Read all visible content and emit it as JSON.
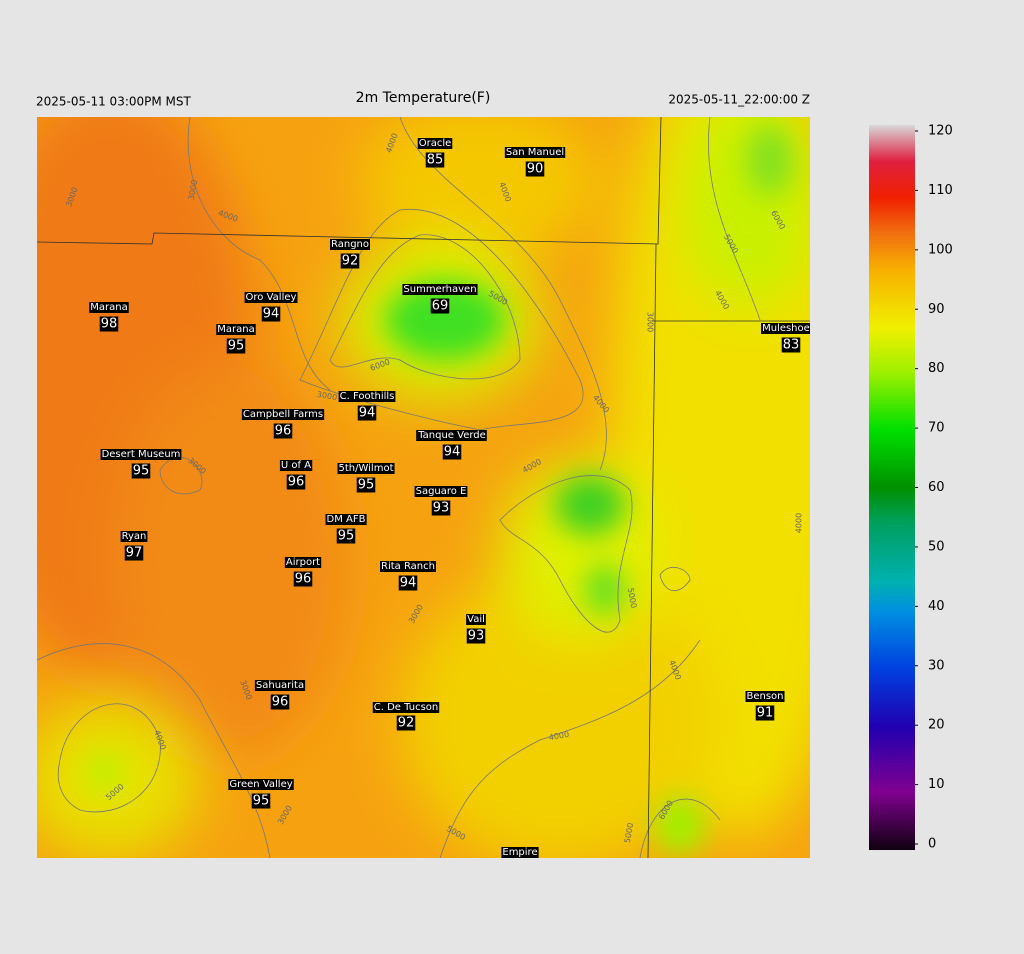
{
  "header": {
    "left": "2025-05-11 03:00PM MST",
    "title": "2m Temperature(F)",
    "right": "2025-05-11_22:00:00 Z"
  },
  "stations": [
    {
      "name": "Oracle",
      "temp": 85
    },
    {
      "name": "San Manuel",
      "temp": 90
    },
    {
      "name": "Rangno",
      "temp": 92
    },
    {
      "name": "Summerhaven",
      "temp": 69
    },
    {
      "name": "Marana",
      "temp": 98
    },
    {
      "name": "Oro Valley",
      "temp": 94
    },
    {
      "name": "Marana",
      "temp": 95
    },
    {
      "name": "Muleshoe R",
      "temp": 83
    },
    {
      "name": "C. Foothills",
      "temp": 94
    },
    {
      "name": "Campbell Farms",
      "temp": 96
    },
    {
      "name": "Tanque Verde",
      "temp": 94
    },
    {
      "name": "Desert Museum",
      "temp": 95
    },
    {
      "name": "U of A",
      "temp": 96
    },
    {
      "name": "5th/Wilmot",
      "temp": 95
    },
    {
      "name": "Saguaro E",
      "temp": 93
    },
    {
      "name": "DM AFB",
      "temp": 95
    },
    {
      "name": "Ryan",
      "temp": 97
    },
    {
      "name": "Airport",
      "temp": 96
    },
    {
      "name": "Rita Ranch",
      "temp": 94
    },
    {
      "name": "Vail",
      "temp": 93
    },
    {
      "name": "Sahuarita",
      "temp": 96
    },
    {
      "name": "C. De Tucson",
      "temp": 92
    },
    {
      "name": "Benson",
      "temp": 91
    },
    {
      "name": "Green Valley",
      "temp": 95
    },
    {
      "name": "Empire"
    }
  ],
  "contour_labels": [
    3000,
    3000,
    4000,
    4000,
    4000,
    5000,
    6000,
    3000,
    3000,
    4000,
    4000,
    5000,
    4000,
    3000,
    3000,
    4000,
    5000,
    3000,
    4000,
    5000,
    5000,
    6000,
    4000,
    5000,
    6000,
    4000,
    3000
  ],
  "colorbar": {
    "lim": [
      0,
      120
    ],
    "ticks": [
      0,
      10,
      20,
      30,
      40,
      50,
      60,
      70,
      80,
      90,
      100,
      110,
      120
    ]
  }
}
